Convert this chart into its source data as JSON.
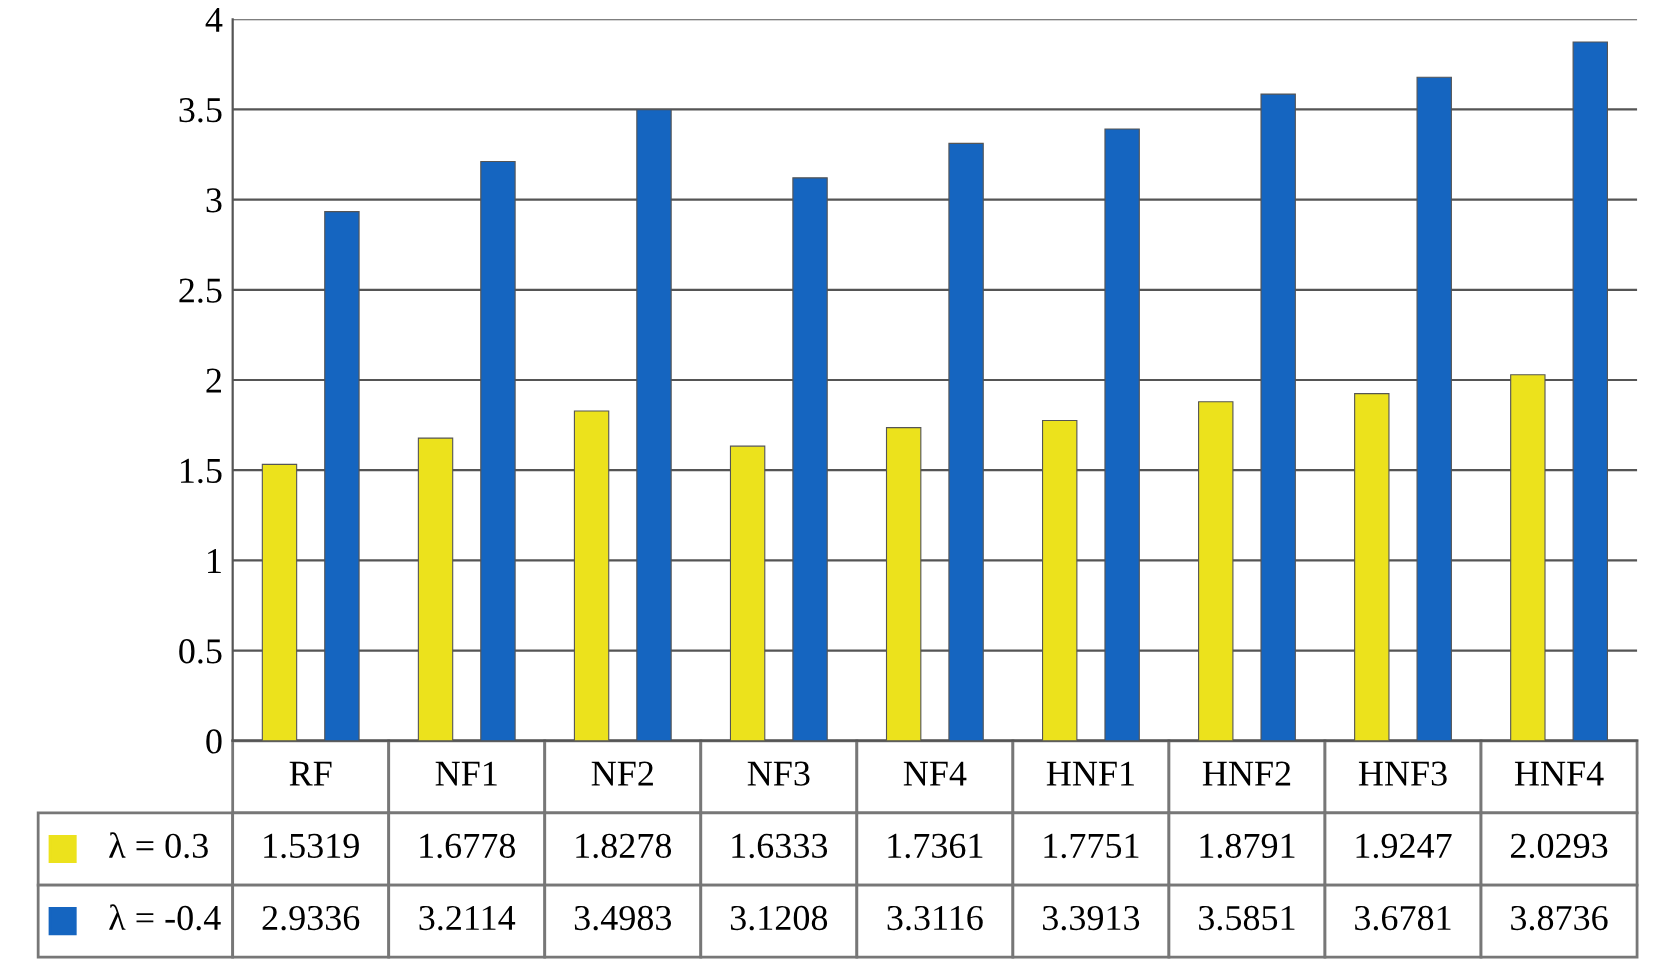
{
  "chart_data": {
    "type": "bar",
    "categories": [
      "RF",
      "NF1",
      "NF2",
      "NF3",
      "NF4",
      "HNF1",
      "HNF2",
      "HNF3",
      "HNF4"
    ],
    "series": [
      {
        "name": "λ = 0.3",
        "color": "#ece21c",
        "values": [
          1.5319,
          1.6778,
          1.8278,
          1.6333,
          1.7361,
          1.7751,
          1.8791,
          1.9247,
          2.0293
        ]
      },
      {
        "name": "λ = -0.4",
        "color": "#1565c0",
        "values": [
          2.9336,
          3.2114,
          3.4983,
          3.1208,
          3.3116,
          3.3913,
          3.5851,
          3.6781,
          3.8736
        ]
      }
    ],
    "ylim": [
      0,
      4
    ],
    "yticks": [
      0,
      0.5,
      1,
      1.5,
      2,
      2.5,
      3,
      3.5,
      4
    ],
    "grid": "y",
    "data_labels": true,
    "legend": "bottom"
  }
}
